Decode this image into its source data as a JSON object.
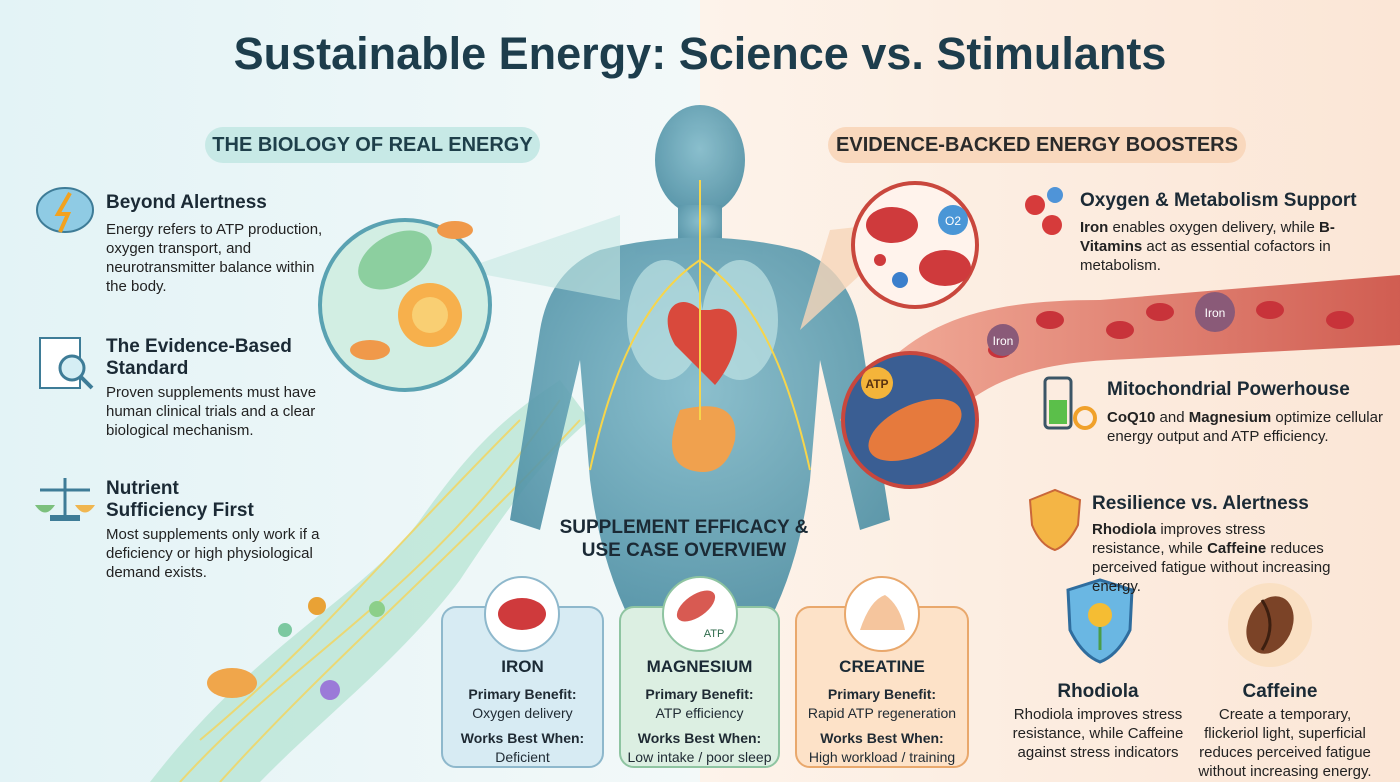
{
  "title": "Sustainable Energy: Science vs. Stimulants",
  "left_section": {
    "heading": "THE BIOLOGY OF REAL ENERGY",
    "items": [
      {
        "title": "Beyond Alertness",
        "text": "Energy refers to ATP production, oxygen transport, and neurotransmitter balance within the body."
      },
      {
        "title": "The Evidence-Based Standard",
        "text": "Proven supplements must have human clinical trials and a clear biological mechanism."
      },
      {
        "title": "Nutrient Sufficiency First",
        "text": "Most supplements only work if a deficiency or high physiological demand exists."
      }
    ]
  },
  "right_section": {
    "heading": "EVIDENCE-BACKED ENERGY BOOSTERS",
    "items": [
      {
        "title": "Oxygen & Metabolism Support",
        "text_parts": [
          "Iron",
          " enables oxygen delivery, while ",
          "B-Vitamins",
          " act as essential cofactors in metabolism."
        ]
      },
      {
        "title": "Mitochondrial Powerhouse",
        "text_parts": [
          "CoQ10",
          " and ",
          "Magnesium",
          " optimize cellular energy output and ATP efficiency."
        ]
      },
      {
        "title": "Resilience vs. Alertness",
        "text_parts": [
          "Rhodiola",
          " improves stress resistance, while ",
          "Caffeine",
          " reduces perceived fatigue without increasing energy."
        ]
      }
    ],
    "compare": [
      {
        "name": "Rhodiola",
        "text": "Rhodiola improves stress resistance, while Caffeine against stress indicators"
      },
      {
        "name": "Caffeine",
        "text": "Create a temporary, flickeriol light, superficial reduces perceived fatigue without increasing energy."
      }
    ]
  },
  "illustration_labels": {
    "oxygen": "O2",
    "atp_cell": "ATP",
    "iron_1": "Iron",
    "iron_2": "Iron",
    "atp_card": "ATP"
  },
  "overview": {
    "title": "SUPPLEMENT EFFICACY & USE CASE OVERVIEW",
    "cards": [
      {
        "name": "IRON",
        "benefit_label": "Primary Benefit:",
        "benefit": "Oxygen delivery",
        "when_label": "Works Best When:",
        "when": "Deficient"
      },
      {
        "name": "MAGNESIUM",
        "benefit_label": "Primary Benefit:",
        "benefit": "ATP efficiency",
        "when_label": "Works Best When:",
        "when": "Low intake / poor sleep"
      },
      {
        "name": "CREATINE",
        "benefit_label": "Primary Benefit:",
        "benefit": "Rapid ATP regeneration",
        "when_label": "Works Best When:",
        "when": "High workload / training"
      }
    ]
  }
}
